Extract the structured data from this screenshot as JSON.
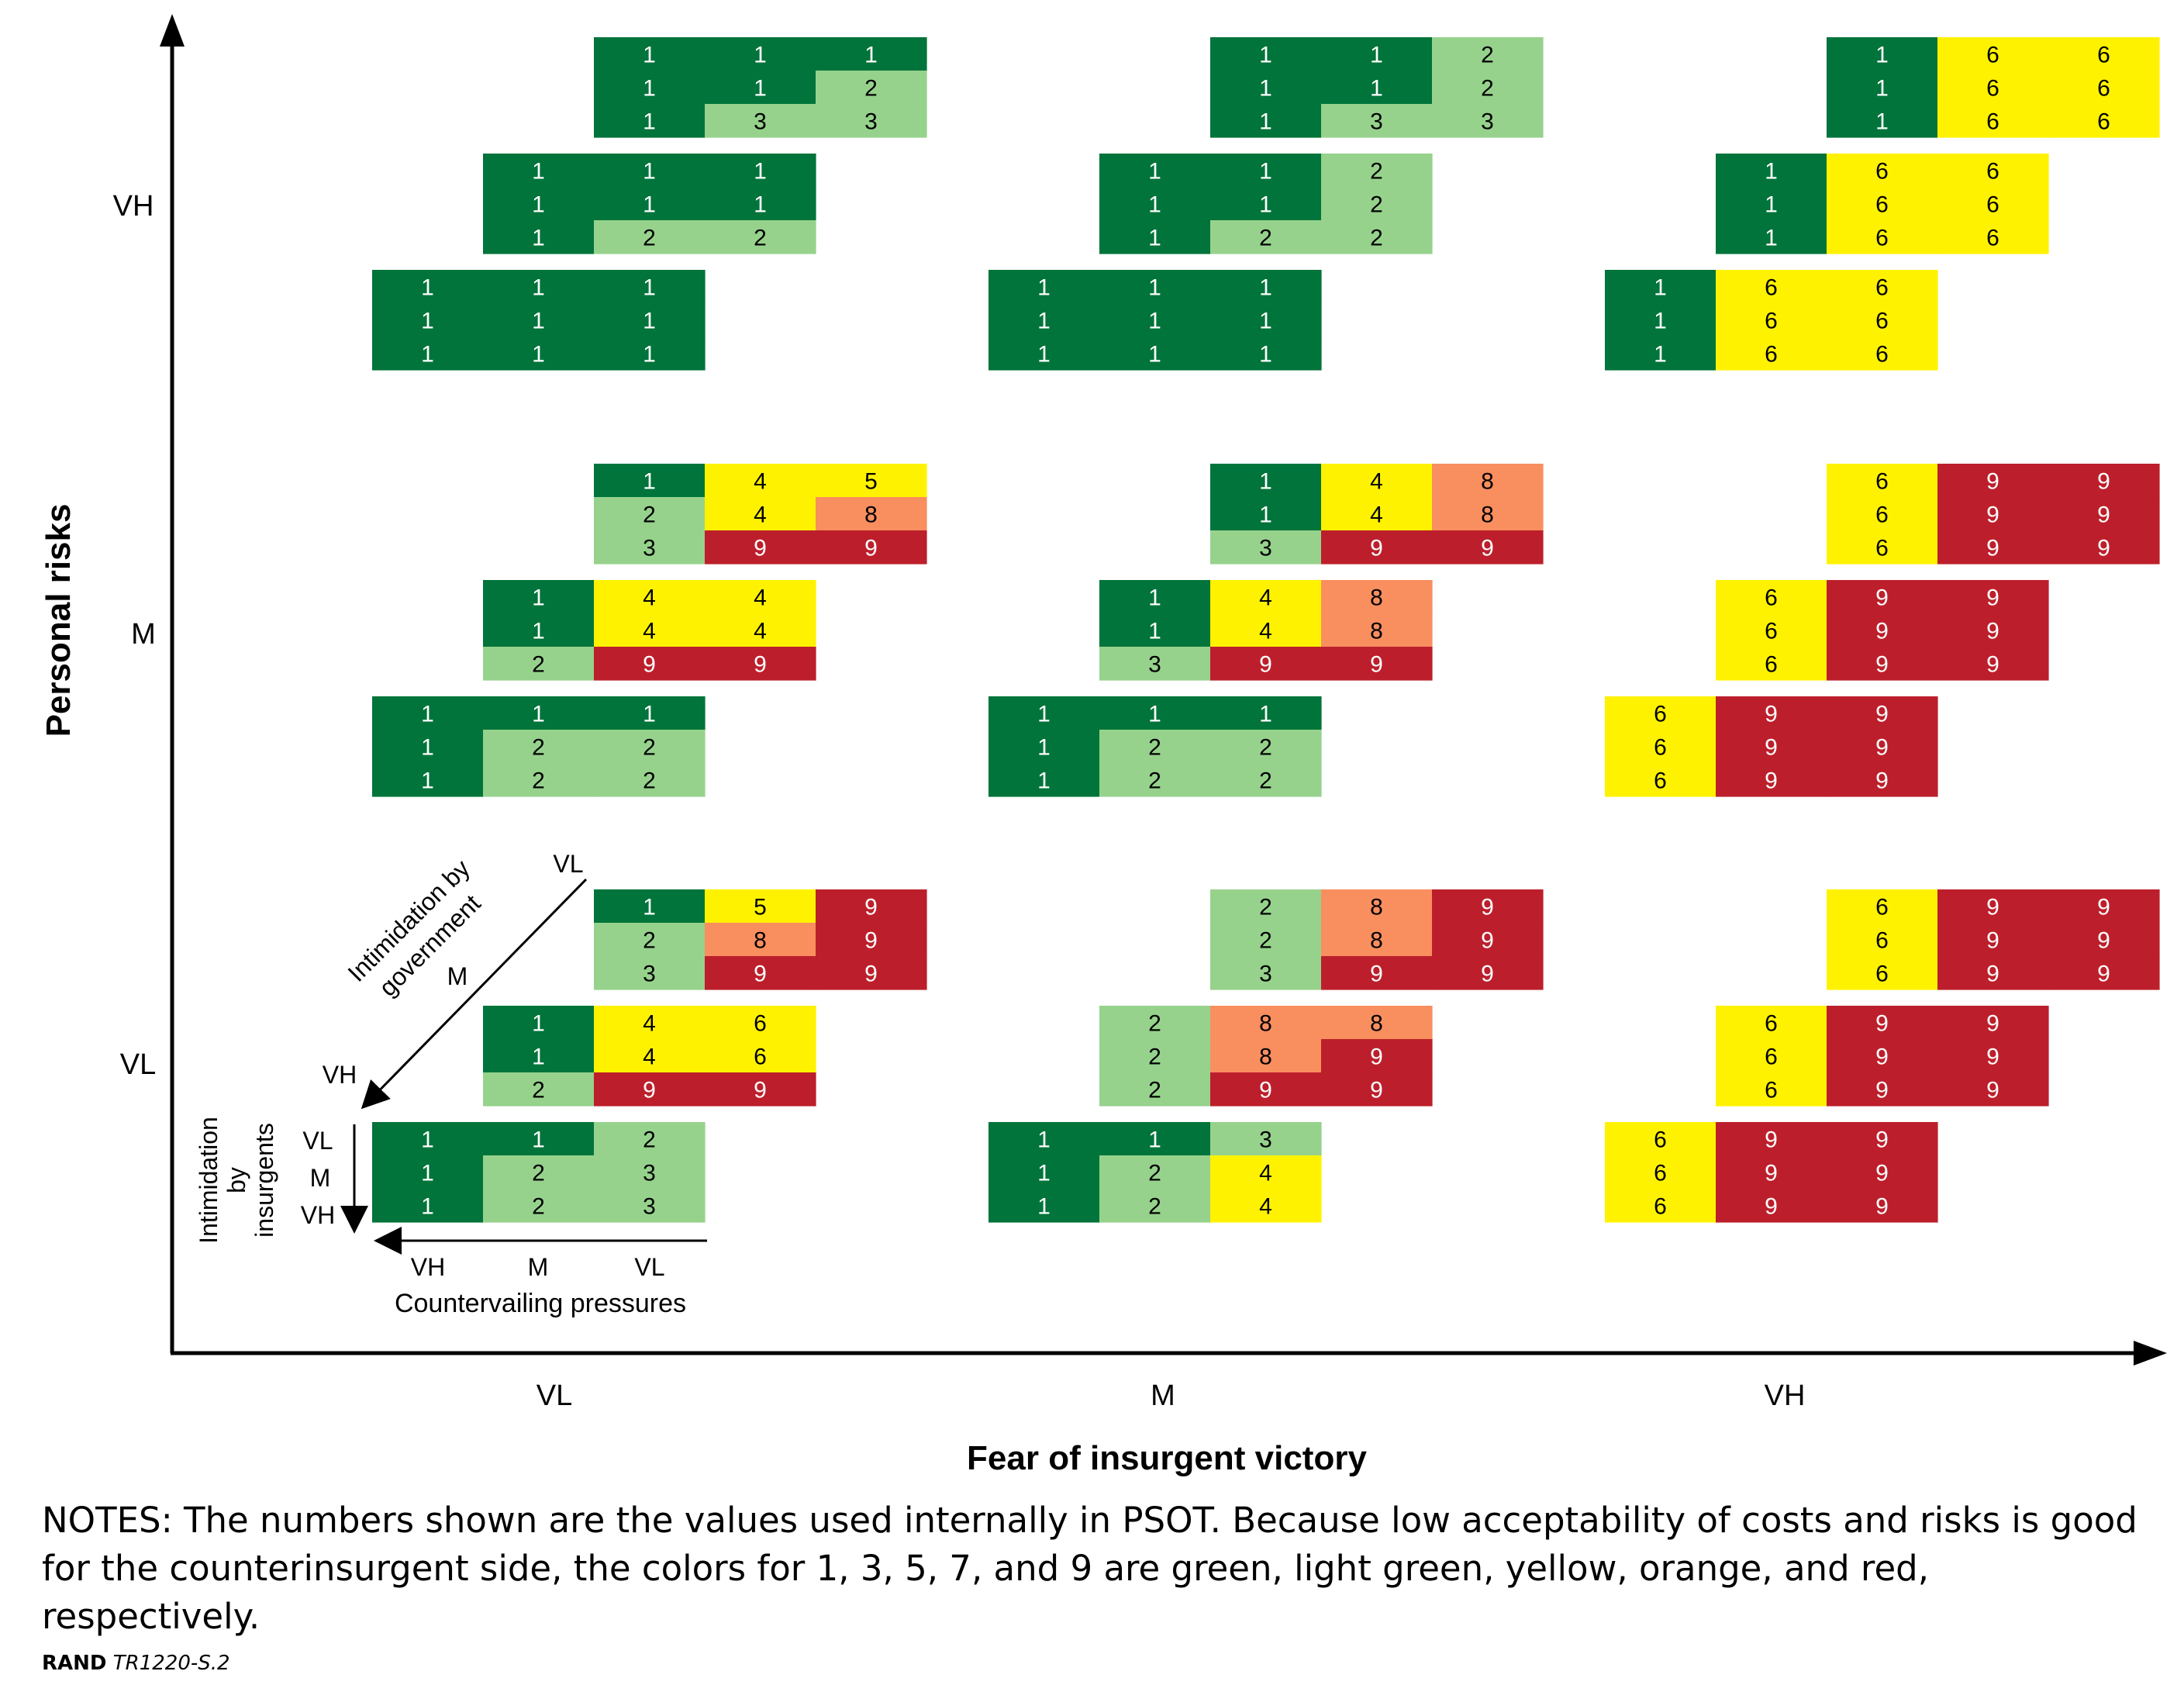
{
  "chart_data": {
    "type": "heatmap",
    "title": "",
    "xlabel": "Fear of insurgent victory",
    "ylabel": "Personal risks",
    "x_ticks": [
      "VL",
      "M",
      "VH"
    ],
    "y_ticks": [
      "VH",
      "M",
      "VL"
    ],
    "legend": {
      "inner_x_label": "Countervailing pressures",
      "inner_x_ticks": [
        "VH",
        "M",
        "VL"
      ],
      "inner_y_label_lines": [
        "Intimidation",
        "by",
        "insurgents"
      ],
      "inner_y_ticks": [
        "VL",
        "M",
        "VH"
      ],
      "diag_label_lines": [
        "Intimidation by",
        "government"
      ],
      "diag_ticks": [
        "VL",
        "M",
        "VH"
      ]
    },
    "value_colors": {
      "1": "#00743a",
      "2": "#96d28c",
      "3": "#96d28c",
      "4": "#fff200",
      "5": "#fff200",
      "6": "#fff200",
      "8": "#f98e5f",
      "9": "#bc1f2b"
    },
    "blocks": [
      {
        "fear": "VL",
        "risk": "VH",
        "gov": "VL",
        "grid": [
          [
            1,
            1,
            1
          ],
          [
            1,
            1,
            2
          ],
          [
            1,
            3,
            3
          ]
        ]
      },
      {
        "fear": "VL",
        "risk": "VH",
        "gov": "M",
        "grid": [
          [
            1,
            1,
            1
          ],
          [
            1,
            1,
            1
          ],
          [
            1,
            2,
            2
          ]
        ]
      },
      {
        "fear": "VL",
        "risk": "VH",
        "gov": "VH",
        "grid": [
          [
            1,
            1,
            1
          ],
          [
            1,
            1,
            1
          ],
          [
            1,
            1,
            1
          ]
        ]
      },
      {
        "fear": "M",
        "risk": "VH",
        "gov": "VL",
        "grid": [
          [
            1,
            1,
            2
          ],
          [
            1,
            1,
            2
          ],
          [
            1,
            3,
            3
          ]
        ]
      },
      {
        "fear": "M",
        "risk": "VH",
        "gov": "M",
        "grid": [
          [
            1,
            1,
            2
          ],
          [
            1,
            1,
            2
          ],
          [
            1,
            2,
            2
          ]
        ]
      },
      {
        "fear": "M",
        "risk": "VH",
        "gov": "VH",
        "grid": [
          [
            1,
            1,
            1
          ],
          [
            1,
            1,
            1
          ],
          [
            1,
            1,
            1
          ]
        ]
      },
      {
        "fear": "VH",
        "risk": "VH",
        "gov": "VL",
        "grid": [
          [
            1,
            6,
            6
          ],
          [
            1,
            6,
            6
          ],
          [
            1,
            6,
            6
          ]
        ]
      },
      {
        "fear": "VH",
        "risk": "VH",
        "gov": "M",
        "grid": [
          [
            1,
            6,
            6
          ],
          [
            1,
            6,
            6
          ],
          [
            1,
            6,
            6
          ]
        ]
      },
      {
        "fear": "VH",
        "risk": "VH",
        "gov": "VH",
        "grid": [
          [
            1,
            6,
            6
          ],
          [
            1,
            6,
            6
          ],
          [
            1,
            6,
            6
          ]
        ]
      },
      {
        "fear": "VL",
        "risk": "M",
        "gov": "VL",
        "grid": [
          [
            1,
            4,
            5
          ],
          [
            2,
            4,
            8
          ],
          [
            3,
            9,
            9
          ]
        ]
      },
      {
        "fear": "VL",
        "risk": "M",
        "gov": "M",
        "grid": [
          [
            1,
            4,
            4
          ],
          [
            1,
            4,
            4
          ],
          [
            2,
            9,
            9
          ]
        ]
      },
      {
        "fear": "VL",
        "risk": "M",
        "gov": "VH",
        "grid": [
          [
            1,
            1,
            1
          ],
          [
            1,
            2,
            2
          ],
          [
            1,
            2,
            2
          ]
        ]
      },
      {
        "fear": "M",
        "risk": "M",
        "gov": "VL",
        "grid": [
          [
            1,
            4,
            8
          ],
          [
            1,
            4,
            8
          ],
          [
            3,
            9,
            9
          ]
        ]
      },
      {
        "fear": "M",
        "risk": "M",
        "gov": "M",
        "grid": [
          [
            1,
            4,
            8
          ],
          [
            1,
            4,
            8
          ],
          [
            3,
            9,
            9
          ]
        ]
      },
      {
        "fear": "M",
        "risk": "M",
        "gov": "VH",
        "grid": [
          [
            1,
            1,
            1
          ],
          [
            1,
            2,
            2
          ],
          [
            1,
            2,
            2
          ]
        ]
      },
      {
        "fear": "VH",
        "risk": "M",
        "gov": "VL",
        "grid": [
          [
            6,
            9,
            9
          ],
          [
            6,
            9,
            9
          ],
          [
            6,
            9,
            9
          ]
        ]
      },
      {
        "fear": "VH",
        "risk": "M",
        "gov": "M",
        "grid": [
          [
            6,
            9,
            9
          ],
          [
            6,
            9,
            9
          ],
          [
            6,
            9,
            9
          ]
        ]
      },
      {
        "fear": "VH",
        "risk": "M",
        "gov": "VH",
        "grid": [
          [
            6,
            9,
            9
          ],
          [
            6,
            9,
            9
          ],
          [
            6,
            9,
            9
          ]
        ]
      },
      {
        "fear": "VL",
        "risk": "VL",
        "gov": "VL",
        "grid": [
          [
            1,
            5,
            9
          ],
          [
            2,
            8,
            9
          ],
          [
            3,
            9,
            9
          ]
        ]
      },
      {
        "fear": "VL",
        "risk": "VL",
        "gov": "M",
        "grid": [
          [
            1,
            4,
            6
          ],
          [
            1,
            4,
            6
          ],
          [
            2,
            9,
            9
          ]
        ]
      },
      {
        "fear": "VL",
        "risk": "VL",
        "gov": "VH",
        "grid": [
          [
            1,
            1,
            2
          ],
          [
            1,
            2,
            3
          ],
          [
            1,
            2,
            3
          ]
        ]
      },
      {
        "fear": "M",
        "risk": "VL",
        "gov": "VL",
        "grid": [
          [
            2,
            8,
            9
          ],
          [
            2,
            8,
            9
          ],
          [
            3,
            9,
            9
          ]
        ]
      },
      {
        "fear": "M",
        "risk": "VL",
        "gov": "M",
        "grid": [
          [
            2,
            8,
            8
          ],
          [
            2,
            8,
            9
          ],
          [
            2,
            9,
            9
          ]
        ]
      },
      {
        "fear": "M",
        "risk": "VL",
        "gov": "VH",
        "grid": [
          [
            1,
            1,
            3
          ],
          [
            1,
            2,
            4
          ],
          [
            1,
            2,
            4
          ]
        ]
      },
      {
        "fear": "VH",
        "risk": "VL",
        "gov": "VL",
        "grid": [
          [
            6,
            9,
            9
          ],
          [
            6,
            9,
            9
          ],
          [
            6,
            9,
            9
          ]
        ]
      },
      {
        "fear": "VH",
        "risk": "VL",
        "gov": "M",
        "grid": [
          [
            6,
            9,
            9
          ],
          [
            6,
            9,
            9
          ],
          [
            6,
            9,
            9
          ]
        ]
      },
      {
        "fear": "VH",
        "risk": "VL",
        "gov": "VH",
        "grid": [
          [
            6,
            9,
            9
          ],
          [
            6,
            9,
            9
          ],
          [
            6,
            9,
            9
          ]
        ]
      }
    ]
  },
  "notes": "NOTES: The numbers shown are the values used internally in PSOT. Because low acceptability of costs and risks is good for the counterinsurgent side, the colors for 1, 3, 5, 7, and 9 are green, light green, yellow, orange, and red, respectively.",
  "footer": {
    "org": "RAND",
    "code": "TR1220-S.2"
  }
}
